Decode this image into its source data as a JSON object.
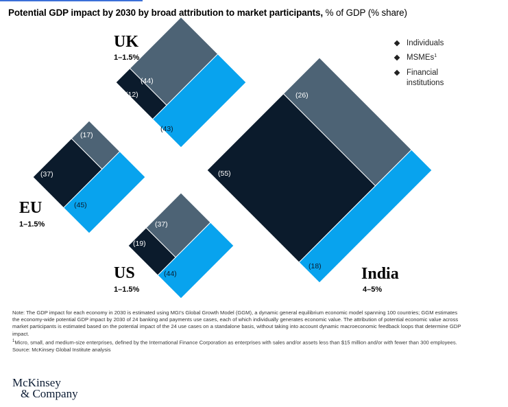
{
  "title": {
    "bold": "Potential GDP impact by 2030 by broad attribution to market participants,",
    "normal": " % of GDP (% share)"
  },
  "colors": {
    "individuals": "#4d6375",
    "msmes": "#0b1b2c",
    "financial": "#08a3ee",
    "divider": "#ffffff"
  },
  "chart_data": {
    "type": "diamond-treemap",
    "title": "Potential GDP impact by 2030 by broad attribution to market participants, % of GDP (% share)",
    "legend": [
      {
        "key": "individuals",
        "label": "Individuals",
        "marker": "◆"
      },
      {
        "key": "msmes",
        "label": "MSMEs",
        "footnote": "1",
        "marker": "◆"
      },
      {
        "key": "financial",
        "label_lines": [
          "Financial",
          "institutions"
        ],
        "marker": "◆"
      }
    ],
    "economies": [
      {
        "name": "UK",
        "range": "1–1.5%",
        "shares": {
          "individuals": 44,
          "msmes": 12,
          "financial": 43
        },
        "labels": {
          "individuals": "(44)",
          "msmes": "(12)",
          "financial": "(43)"
        }
      },
      {
        "name": "EU",
        "range": "1–1.5%",
        "shares": {
          "individuals": 17,
          "msmes": 37,
          "financial": 45
        },
        "labels": {
          "individuals": "(17)",
          "msmes": "(37)",
          "financial": "(45)"
        }
      },
      {
        "name": "US",
        "range": "1–1.5%",
        "shares": {
          "individuals": 37,
          "msmes": 19,
          "financial": 44
        },
        "labels": {
          "individuals": "(37)",
          "msmes": "(19)",
          "financial": "(44)"
        }
      },
      {
        "name": "India",
        "range": "4–5%",
        "shares": {
          "individuals": 26,
          "msmes": 55,
          "financial": 18
        },
        "labels": {
          "individuals": "(26)",
          "msmes": "(55)",
          "financial": "(18)"
        }
      }
    ]
  },
  "notes": {
    "note": "Note: The GDP impact for each economy in 2030 is estimated using MGI’s Global Growth Model (GGM), a dynamic general equilibrium economic model spanning 100 countries; GGM estimates the economy-wide potential GDP impact by 2030 of 24 banking and payments use cases, each of which individually generates economic value. The attribution of potential economic value across market participants is estimated based on the potential impact of the 24 use cases on a standalone basis, without taking into account dynamic macroeconomic feedback loops that determine GDP impact.",
    "footnote_marker": "1",
    "footnote": "Micro, small, and medium-size enterprises, defined by the International Finance Corporation as enterprises with sales and/or assets less than $15 million and/or with fewer than 300 employees.",
    "source": "Source: McKinsey Global Institute analysis"
  },
  "logo": {
    "line1": "McKinsey",
    "line2": "& Company"
  }
}
